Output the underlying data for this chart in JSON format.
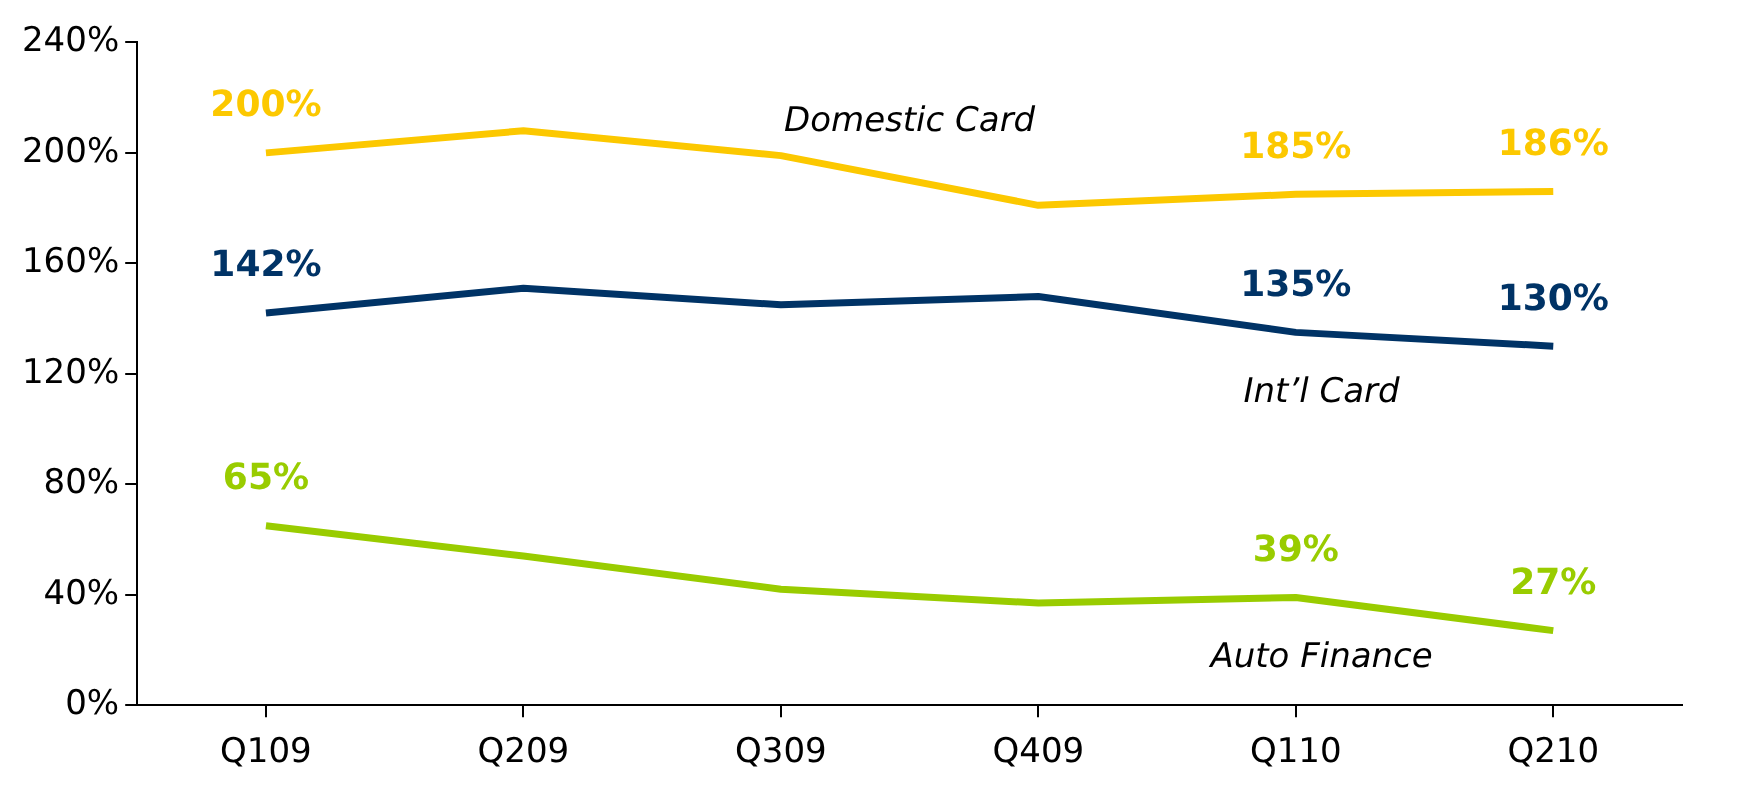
{
  "chart_data": {
    "type": "line",
    "categories": [
      "Q109",
      "Q209",
      "Q309",
      "Q409",
      "Q110",
      "Q210"
    ],
    "series": [
      {
        "name": "Domestic Card",
        "color": "#fcc800",
        "values": [
          200,
          208,
          199,
          181,
          185,
          186
        ],
        "value_labels": [
          "200%",
          null,
          null,
          null,
          "185%",
          "186%"
        ]
      },
      {
        "name": "Int’l Card",
        "color": "#003366",
        "values": [
          142,
          151,
          145,
          148,
          135,
          130
        ],
        "value_labels": [
          "142%",
          null,
          null,
          null,
          "135%",
          "130%"
        ]
      },
      {
        "name": "Auto Finance",
        "color": "#99cc00",
        "values": [
          65,
          54,
          42,
          37,
          39,
          27
        ],
        "value_labels": [
          "65%",
          null,
          null,
          null,
          "39%",
          "27%"
        ]
      }
    ],
    "ylim": [
      0,
      240
    ],
    "yticks": [
      {
        "value": 0,
        "label": "0%"
      },
      {
        "value": 40,
        "label": "40%"
      },
      {
        "value": 80,
        "label": "80%"
      },
      {
        "value": 120,
        "label": "120%"
      },
      {
        "value": 160,
        "label": "160%"
      },
      {
        "value": 200,
        "label": "200%"
      },
      {
        "value": 240,
        "label": "240%"
      }
    ],
    "grid": false,
    "legend": false,
    "marker": "none",
    "line_style": "solid"
  }
}
